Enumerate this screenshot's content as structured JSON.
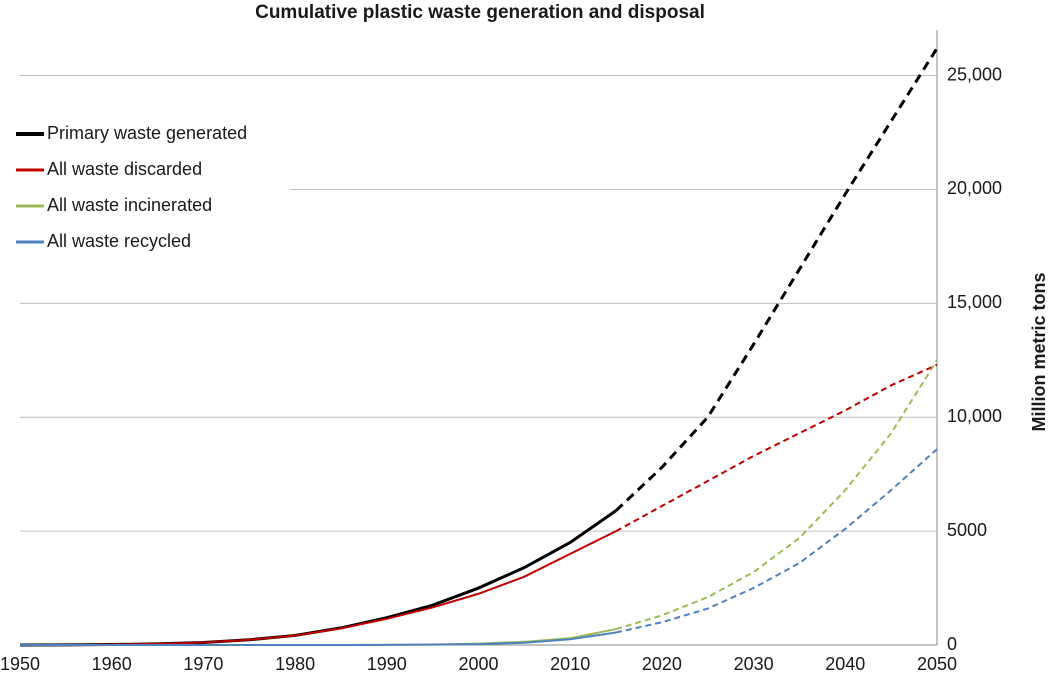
{
  "chart_data": {
    "type": "line",
    "title": "Cumulative plastic waste generation and disposal",
    "y_label": "Million metric tons",
    "x": [
      1950,
      1955,
      1960,
      1965,
      1970,
      1975,
      1980,
      1985,
      1990,
      1995,
      2000,
      2005,
      2010,
      2015,
      2020,
      2025,
      2030,
      2035,
      2040,
      2045,
      2050
    ],
    "series": [
      {
        "name": "Primary waste generated",
        "color": "#000000",
        "values": [
          0,
          5,
          20,
          50,
          110,
          230,
          420,
          750,
          1200,
          1750,
          2500,
          3400,
          4500,
          5900,
          7800,
          10000,
          13200,
          16500,
          19800,
          23000,
          26200
        ]
      },
      {
        "name": "All waste discarded",
        "color": "#c00000",
        "values": [
          0,
          5,
          20,
          50,
          110,
          230,
          410,
          730,
          1150,
          1650,
          2250,
          3000,
          4000,
          5000,
          6100,
          7200,
          8300,
          9300,
          10300,
          11400,
          12300
        ]
      },
      {
        "name": "All waste incinerated",
        "color": "#9bbb59",
        "values": [
          0,
          0,
          0,
          0,
          0,
          0,
          0,
          0,
          5,
          20,
          60,
          140,
          300,
          700,
          1300,
          2100,
          3200,
          4700,
          6800,
          9300,
          12500
        ]
      },
      {
        "name": "All waste recycled",
        "color": "#4f81bd",
        "values": [
          0,
          0,
          0,
          0,
          0,
          0,
          0,
          0,
          5,
          15,
          40,
          100,
          250,
          550,
          1000,
          1600,
          2500,
          3600,
          5100,
          6800,
          8600
        ]
      }
    ],
    "projection_from": 2015,
    "xlim": [
      1950,
      2050
    ],
    "xticks": [
      1950,
      1960,
      1970,
      1980,
      1990,
      2000,
      2010,
      2020,
      2030,
      2040,
      2050
    ],
    "ylim": [
      0,
      27000
    ],
    "yticks": [
      0,
      5000,
      {
        "value": 10000,
        "label": "10,000"
      },
      {
        "value": 15000,
        "label": "15,000"
      },
      {
        "value": 20000,
        "label": "20,000"
      },
      {
        "value": 25000,
        "label": "25,000"
      }
    ],
    "y_axis_side": "right",
    "grid": true,
    "legend": "upper-left"
  }
}
